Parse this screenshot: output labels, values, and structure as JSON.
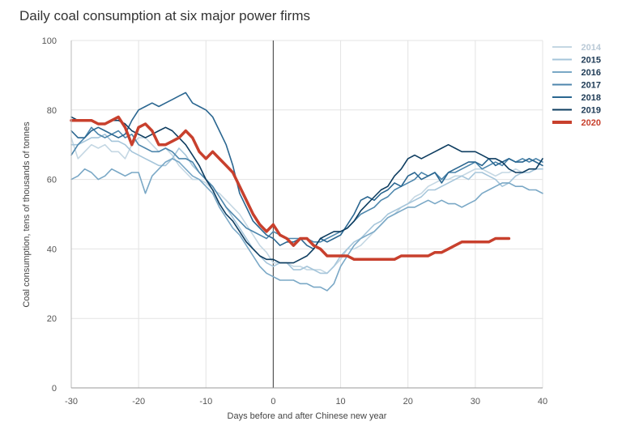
{
  "chart_data": {
    "type": "line",
    "title": "Daily coal consumption at six major power firms",
    "xlabel": "Days before and after Chinese new year",
    "ylabel": "Coal consumption, tens of thousands of tonnes",
    "xlim": [
      -30,
      40
    ],
    "ylim": [
      0,
      100
    ],
    "xticks": [
      -30,
      -20,
      -10,
      0,
      10,
      20,
      30,
      40
    ],
    "yticks": [
      0,
      20,
      40,
      60,
      80,
      100
    ],
    "grid": true,
    "legend_position": "right",
    "reference_line_x": 0,
    "series": [
      {
        "name": "2014",
        "color": "#c4d7e3",
        "x": [
          -30,
          -29,
          -28,
          -27,
          -26,
          -25,
          -24,
          -23,
          -22,
          -21,
          -20,
          -19,
          -18,
          -17,
          -16,
          -15,
          -14,
          -13,
          -12,
          -11,
          -10,
          -9,
          -8,
          -7,
          -6,
          -5,
          -4,
          -3,
          -2,
          -1,
          0,
          1,
          2,
          3,
          4,
          5,
          6,
          7,
          8,
          9,
          10,
          11,
          12,
          13,
          14,
          15,
          16,
          17,
          18,
          19,
          20,
          21,
          22,
          23,
          24,
          25,
          26,
          27,
          28,
          29,
          30,
          31,
          32,
          33,
          34,
          35,
          36,
          37,
          38,
          39,
          40
        ],
        "y": [
          72,
          66,
          68,
          70,
          69,
          70,
          68,
          68,
          66,
          70,
          72,
          72,
          70,
          68,
          69,
          67,
          64,
          62,
          60,
          60,
          59,
          57,
          56,
          54,
          52,
          50,
          47,
          44,
          41,
          39,
          36,
          36,
          36,
          35,
          35,
          34,
          34,
          34,
          33,
          35,
          37,
          40,
          40,
          41,
          43,
          45,
          47,
          49,
          50,
          52,
          53,
          55,
          56,
          58,
          59,
          60,
          60,
          61,
          61,
          62,
          63,
          63,
          62,
          61,
          62,
          62,
          63,
          62,
          63,
          63,
          63
        ]
      },
      {
        "name": "2015",
        "color": "#a5c5da",
        "x": [
          -30,
          -29,
          -28,
          -27,
          -26,
          -25,
          -24,
          -23,
          -22,
          -21,
          -20,
          -19,
          -18,
          -17,
          -16,
          -15,
          -14,
          -13,
          -12,
          -11,
          -10,
          -9,
          -8,
          -7,
          -6,
          -5,
          -4,
          -3,
          -2,
          -1,
          0,
          1,
          2,
          3,
          4,
          5,
          6,
          7,
          8,
          9,
          10,
          11,
          12,
          13,
          14,
          15,
          16,
          17,
          18,
          19,
          20,
          21,
          22,
          23,
          24,
          25,
          26,
          27,
          28,
          29,
          30,
          31,
          32,
          33,
          34,
          35,
          36,
          37,
          38,
          39,
          40
        ],
        "y": [
          70,
          70,
          71,
          72,
          72,
          73,
          71,
          71,
          70,
          68,
          67,
          66,
          65,
          64,
          64,
          66,
          69,
          67,
          64,
          62,
          60,
          58,
          55,
          52,
          49,
          46,
          43,
          40,
          38,
          36,
          35,
          36,
          36,
          34,
          34,
          35,
          34,
          33,
          33,
          35,
          38,
          40,
          42,
          43,
          45,
          47,
          48,
          50,
          51,
          52,
          53,
          54,
          55,
          57,
          57,
          58,
          59,
          60,
          61,
          60,
          62,
          62,
          61,
          60,
          58,
          59,
          61,
          62,
          62,
          63,
          63
        ]
      },
      {
        "name": "2016",
        "color": "#7aa8c6",
        "x": [
          -30,
          -29,
          -28,
          -27,
          -26,
          -25,
          -24,
          -23,
          -22,
          -21,
          -20,
          -19,
          -18,
          -17,
          -16,
          -15,
          -14,
          -13,
          -12,
          -11,
          -10,
          -9,
          -8,
          -7,
          -6,
          -5,
          -4,
          -3,
          -2,
          -1,
          0,
          1,
          2,
          3,
          4,
          5,
          6,
          7,
          8,
          9,
          10,
          11,
          12,
          13,
          14,
          15,
          16,
          17,
          18,
          19,
          20,
          21,
          22,
          23,
          24,
          25,
          26,
          27,
          28,
          29,
          30,
          31,
          32,
          33,
          34,
          35,
          36,
          37,
          38,
          39,
          40
        ],
        "y": [
          60,
          61,
          63,
          62,
          60,
          61,
          63,
          62,
          61,
          62,
          62,
          56,
          61,
          63,
          65,
          66,
          65,
          63,
          61,
          60,
          58,
          56,
          52,
          49,
          46,
          44,
          41,
          38,
          35,
          33,
          32,
          31,
          31,
          31,
          30,
          30,
          29,
          29,
          28,
          30,
          35,
          38,
          41,
          43,
          44,
          45,
          47,
          49,
          50,
          51,
          52,
          52,
          53,
          54,
          53,
          54,
          53,
          53,
          52,
          53,
          54,
          56,
          57,
          58,
          59,
          59,
          58,
          58,
          57,
          57,
          56
        ]
      },
      {
        "name": "2017",
        "color": "#4d86ac",
        "x": [
          -30,
          -29,
          -28,
          -27,
          -26,
          -25,
          -24,
          -23,
          -22,
          -21,
          -20,
          -19,
          -18,
          -17,
          -16,
          -15,
          -14,
          -13,
          -12,
          -11,
          -10,
          -9,
          -8,
          -7,
          -6,
          -5,
          -4,
          -3,
          -2,
          -1,
          0,
          1,
          2,
          3,
          4,
          5,
          6,
          7,
          8,
          9,
          10,
          11,
          12,
          13,
          14,
          15,
          16,
          17,
          18,
          19,
          20,
          21,
          22,
          23,
          24,
          25,
          26,
          27,
          28,
          29,
          30,
          31,
          32,
          33,
          34,
          35,
          36,
          37,
          38,
          39,
          40
        ],
        "y": [
          67,
          70,
          72,
          75,
          73,
          72,
          73,
          74,
          72,
          73,
          70,
          69,
          68,
          68,
          69,
          68,
          66,
          66,
          65,
          62,
          60,
          58,
          55,
          52,
          50,
          48,
          46,
          45,
          44,
          43,
          45,
          44,
          43,
          43,
          43,
          43,
          42,
          42,
          43,
          44,
          45,
          46,
          48,
          50,
          51,
          52,
          54,
          55,
          57,
          58,
          59,
          60,
          62,
          61,
          62,
          60,
          62,
          62,
          63,
          64,
          65,
          63,
          64,
          65,
          64,
          66,
          65,
          66,
          65,
          66,
          65
        ]
      },
      {
        "name": "2018",
        "color": "#2a6690",
        "x": [
          -30,
          -29,
          -28,
          -27,
          -26,
          -25,
          -24,
          -23,
          -22,
          -21,
          -20,
          -19,
          -18,
          -17,
          -16,
          -15,
          -14,
          -13,
          -12,
          -11,
          -10,
          -9,
          -8,
          -7,
          -6,
          -5,
          -4,
          -3,
          -2,
          -1,
          0,
          1,
          2,
          3,
          4,
          5,
          6,
          7,
          8,
          9,
          10,
          11,
          12,
          13,
          14,
          15,
          16,
          17,
          18,
          19,
          20,
          21,
          22,
          23,
          24,
          25,
          26,
          27,
          28,
          29,
          30,
          31,
          32,
          33,
          34,
          35,
          36,
          37,
          38,
          39,
          40
        ],
        "y": [
          74,
          72,
          72,
          74,
          75,
          74,
          73,
          72,
          73,
          77,
          80,
          81,
          82,
          81,
          82,
          83,
          84,
          85,
          82,
          81,
          80,
          78,
          74,
          70,
          64,
          56,
          52,
          48,
          46,
          44,
          43,
          41,
          42,
          42,
          43,
          41,
          40,
          43,
          42,
          43,
          44,
          47,
          50,
          54,
          55,
          54,
          56,
          57,
          59,
          58,
          61,
          62,
          60,
          61,
          62,
          59,
          62,
          63,
          64,
          65,
          65,
          64,
          66,
          64,
          65,
          66,
          65,
          65,
          66,
          65,
          64
        ]
      },
      {
        "name": "2019",
        "color": "#0e3d60",
        "x": [
          -30,
          -29,
          -28,
          -27,
          -26,
          -25,
          -24,
          -23,
          -22,
          -21,
          -20,
          -19,
          -18,
          -17,
          -16,
          -15,
          -14,
          -13,
          -12,
          -11,
          -10,
          -9,
          -8,
          -7,
          -6,
          -5,
          -4,
          -3,
          -2,
          -1,
          0,
          1,
          2,
          3,
          4,
          5,
          6,
          7,
          8,
          9,
          10,
          11,
          12,
          13,
          14,
          15,
          16,
          17,
          18,
          19,
          20,
          21,
          22,
          23,
          24,
          25,
          26,
          27,
          28,
          29,
          30,
          31,
          32,
          33,
          34,
          35,
          36,
          37,
          38,
          39,
          40
        ],
        "y": [
          78,
          77,
          77,
          77,
          76,
          76,
          77,
          77,
          76,
          74,
          73,
          72,
          73,
          74,
          75,
          74,
          72,
          70,
          67,
          64,
          60,
          57,
          53,
          50,
          48,
          45,
          42,
          40,
          38,
          37,
          37,
          36,
          36,
          36,
          37,
          38,
          40,
          43,
          44,
          45,
          45,
          46,
          48,
          51,
          53,
          55,
          57,
          58,
          61,
          63,
          66,
          67,
          66,
          67,
          68,
          69,
          70,
          69,
          68,
          68,
          68,
          67,
          66,
          66,
          65,
          63,
          62,
          62,
          63,
          63,
          66
        ]
      },
      {
        "name": "2020",
        "color": "#c8402d",
        "x": [
          -30,
          -29,
          -28,
          -27,
          -26,
          -25,
          -24,
          -23,
          -22,
          -21,
          -20,
          -19,
          -18,
          -17,
          -16,
          -15,
          -14,
          -13,
          -12,
          -11,
          -10,
          -9,
          -8,
          -7,
          -6,
          -5,
          -4,
          -3,
          -2,
          -1,
          0,
          1,
          2,
          3,
          4,
          5,
          6,
          7,
          8,
          9,
          10,
          11,
          12,
          13,
          14,
          15,
          16,
          17,
          18,
          19,
          20,
          21,
          22,
          23,
          24,
          25,
          26,
          27,
          28,
          29,
          30,
          31,
          32,
          33,
          34,
          35
        ],
        "y": [
          77,
          77,
          77,
          77,
          76,
          76,
          77,
          78,
          75,
          70,
          75,
          76,
          74,
          70,
          70,
          71,
          72,
          74,
          72,
          68,
          66,
          68,
          66,
          64,
          62,
          58,
          54,
          50,
          47,
          45,
          47,
          44,
          43,
          41,
          43,
          43,
          41,
          40,
          38,
          38,
          38,
          38,
          37,
          37,
          37,
          37,
          37,
          37,
          37,
          38,
          38,
          38,
          38,
          38,
          39,
          39,
          40,
          41,
          42,
          42,
          42,
          42,
          42,
          43,
          43,
          43
        ]
      }
    ]
  }
}
